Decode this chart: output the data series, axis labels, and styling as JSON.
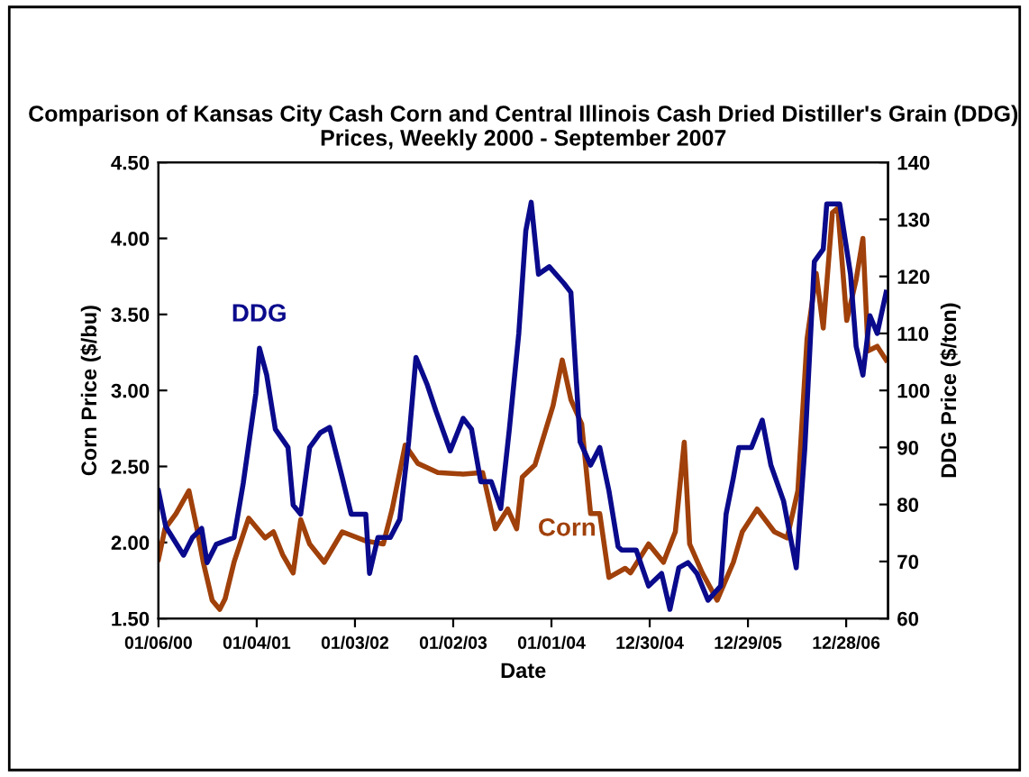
{
  "chart_data": {
    "type": "line",
    "title": "Comparison of Kansas City Cash Corn and Central Illinois Cash Dried Distiller's Grain (DDG) Prices, Weekly 2000 - September 2007",
    "xlabel": "Date",
    "ylabel": "Corn Price ($/bu)",
    "y2label": "DDG Price ($/ton)",
    "series": [
      {
        "name": "Corn",
        "color": "#a0400a",
        "x": [
          "2000-01-06",
          "2000-01-30",
          "2000-03-11",
          "2000-04-28",
          "2000-05-30",
          "2000-06-20",
          "2000-07-23",
          "2000-08-20",
          "2000-09-09",
          "2000-10-12",
          "2000-12-05",
          "2001-02-04",
          "2001-03-07",
          "2001-04-10",
          "2001-05-19",
          "2001-06-16",
          "2001-07-19",
          "2001-09-11",
          "2001-11-17",
          "2002-02-12",
          "2002-04-18",
          "2002-05-21",
          "2002-07-08",
          "2002-08-24",
          "2002-11-06",
          "2003-02-08",
          "2003-04-21",
          "2003-06-07",
          "2003-07-23",
          "2003-08-25",
          "2003-09-15",
          "2003-11-01",
          "2004-01-07",
          "2004-02-10",
          "2004-03-13",
          "2004-04-22",
          "2004-05-25",
          "2004-06-28",
          "2004-08-01",
          "2004-09-30",
          "2004-10-20",
          "2004-12-26",
          "2005-02-19",
          "2005-04-04",
          "2005-05-07",
          "2005-05-27",
          "2005-07-13",
          "2005-09-06",
          "2005-11-05",
          "2005-12-08",
          "2006-02-01",
          "2006-04-06",
          "2006-05-23",
          "2006-07-02",
          "2006-08-05",
          "2006-09-08",
          "2006-10-04",
          "2006-11-07",
          "2006-11-27",
          "2006-12-30",
          "2007-02-03",
          "2007-02-28",
          "2007-03-19",
          "2007-04-22",
          "2007-05-25"
        ],
        "values": [
          1.89,
          2.09,
          2.19,
          2.34,
          2.07,
          1.87,
          1.62,
          1.56,
          1.63,
          1.87,
          2.16,
          2.03,
          2.07,
          1.92,
          1.8,
          2.15,
          1.99,
          1.87,
          2.07,
          2.01,
          1.99,
          2.22,
          2.64,
          2.52,
          2.46,
          2.45,
          2.46,
          2.09,
          2.22,
          2.09,
          2.43,
          2.51,
          2.9,
          3.2,
          2.94,
          2.78,
          2.19,
          2.19,
          1.77,
          1.83,
          1.8,
          1.99,
          1.87,
          2.07,
          2.66,
          1.99,
          1.8,
          1.62,
          1.87,
          2.07,
          2.22,
          2.07,
          2.03,
          2.34,
          3.34,
          3.77,
          3.41,
          4.17,
          4.2,
          3.46,
          3.73,
          4.0,
          3.26,
          3.29,
          3.2
        ]
      },
      {
        "name": "DDG",
        "color": "#0a0a8c",
        "axis": "y2",
        "x": [
          "2000-01-06",
          "2000-02-02",
          "2000-04-08",
          "2000-05-11",
          "2000-06-14",
          "2000-07-04",
          "2000-08-07",
          "2000-10-12",
          "2000-11-15",
          "2001-01-01",
          "2001-01-14",
          "2001-02-10",
          "2001-03-14",
          "2001-04-30",
          "2001-05-19",
          "2001-06-16",
          "2001-07-19",
          "2001-08-28",
          "2001-10-01",
          "2001-11-17",
          "2001-12-20",
          "2002-02-12",
          "2002-02-26",
          "2002-03-29",
          "2002-05-14",
          "2002-06-18",
          "2002-07-21",
          "2002-08-17",
          "2002-09-27",
          "2002-10-30",
          "2002-12-22",
          "2003-02-08",
          "2003-03-11",
          "2003-04-14",
          "2003-05-23",
          "2003-06-27",
          "2003-07-29",
          "2003-09-02",
          "2003-09-28",
          "2003-10-18",
          "2003-11-14",
          "2003-12-24",
          "2004-02-16",
          "2004-03-13",
          "2004-04-16",
          "2004-05-25",
          "2004-06-28",
          "2004-08-01",
          "2004-09-04",
          "2004-09-17",
          "2004-11-10",
          "2004-12-26",
          "2005-02-12",
          "2005-03-15",
          "2005-04-17",
          "2005-05-21",
          "2005-06-23",
          "2005-08-03",
          "2005-09-19",
          "2005-10-09",
          "2005-11-05",
          "2005-11-25",
          "2006-01-11",
          "2006-02-20",
          "2006-03-24",
          "2006-05-10",
          "2006-06-26",
          "2006-07-28",
          "2006-09-01",
          "2006-10-04",
          "2006-10-17",
          "2006-12-04",
          "2007-01-13",
          "2007-02-03",
          "2007-02-28",
          "2007-03-26",
          "2007-04-22",
          "2007-05-25"
        ],
        "values": [
          82.4,
          76.1,
          71.1,
          74.2,
          75.8,
          69.8,
          73.0,
          74.2,
          83.7,
          99.5,
          107.4,
          102.7,
          93.2,
          90.0,
          79.9,
          78.3,
          90.0,
          92.6,
          93.5,
          84.7,
          78.3,
          78.3,
          67.9,
          74.2,
          74.2,
          77.4,
          91.0,
          105.8,
          101.1,
          96.4,
          89.4,
          95.1,
          93.2,
          84.0,
          84.0,
          79.3,
          93.2,
          110.0,
          128.0,
          133.0,
          120.4,
          121.7,
          118.8,
          117.2,
          91.0,
          86.9,
          90.0,
          82.4,
          72.6,
          72.0,
          72.0,
          65.7,
          67.9,
          61.6,
          68.9,
          69.8,
          67.9,
          63.2,
          65.7,
          78.3,
          84.7,
          90.0,
          90.0,
          94.8,
          86.9,
          80.6,
          68.9,
          90.0,
          122.6,
          124.8,
          132.7,
          132.7,
          120.4,
          107.7,
          102.7,
          113.1,
          110.0,
          117.2
        ]
      }
    ],
    "xlim": [
      "2000-01-06",
      "2007-06-01"
    ],
    "xticks": [
      {
        "value": "2000-01-06",
        "label": "01/06/00"
      },
      {
        "value": "2001-01-04",
        "label": "01/04/01"
      },
      {
        "value": "2002-01-03",
        "label": "01/03/02"
      },
      {
        "value": "2003-01-02",
        "label": "01/02/03"
      },
      {
        "value": "2004-01-01",
        "label": "01/01/04"
      },
      {
        "value": "2004-12-30",
        "label": "12/30/04"
      },
      {
        "value": "2005-12-29",
        "label": "12/29/05"
      },
      {
        "value": "2006-12-28",
        "label": "12/28/06"
      }
    ],
    "ylim": [
      1.5,
      4.5
    ],
    "yticks": [
      {
        "value": 1.5,
        "label": "1.50"
      },
      {
        "value": 2.0,
        "label": "2.00"
      },
      {
        "value": 2.5,
        "label": "2.50"
      },
      {
        "value": 3.0,
        "label": "3.00"
      },
      {
        "value": 3.5,
        "label": "3.50"
      },
      {
        "value": 4.0,
        "label": "4.00"
      },
      {
        "value": 4.5,
        "label": "4.50"
      }
    ],
    "y2lim": [
      60,
      140
    ],
    "y2ticks": [
      60,
      70,
      80,
      90,
      100,
      110,
      120,
      130,
      140
    ],
    "grid": false,
    "legend": false,
    "marker": "none",
    "line_style": "solid"
  }
}
